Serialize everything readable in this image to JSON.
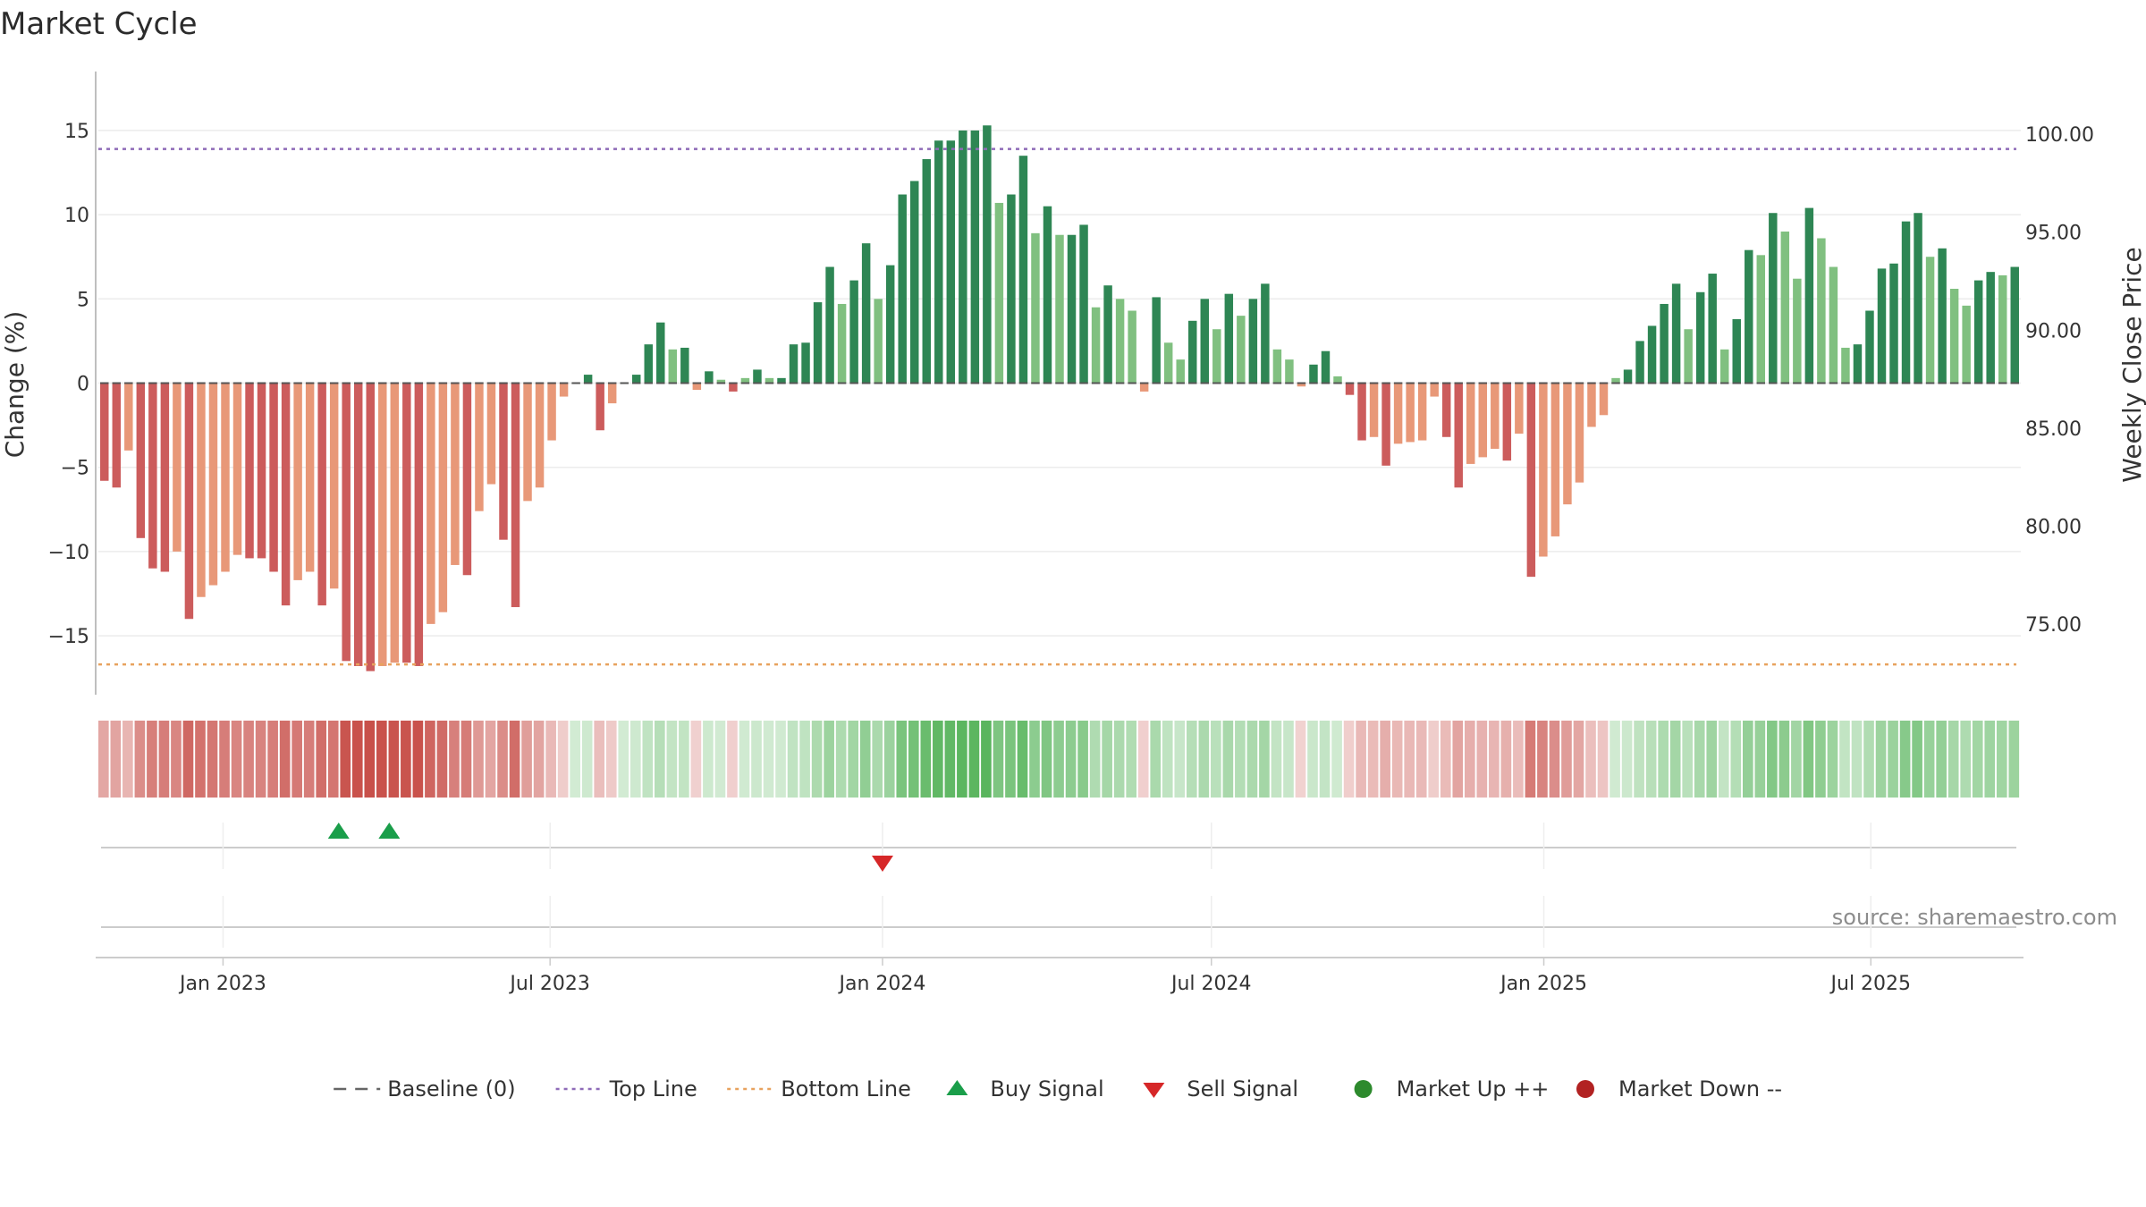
{
  "chart_data": {
    "type": "bar",
    "title": "Market Cycle",
    "ylabel": "Change (%)",
    "y2label": "Weekly Close Price",
    "ylim": [
      -18.5,
      18.5
    ],
    "y2lim": [
      71.4,
      103.2
    ],
    "yticks": [
      15,
      10,
      5,
      0,
      -5,
      -10,
      -15
    ],
    "ytick_labels": [
      "15",
      "10",
      "5",
      "0",
      "−5",
      "−10",
      "−15"
    ],
    "y2ticks": [
      100,
      95,
      90,
      85,
      80,
      75
    ],
    "y2tick_labels": [
      "100.00",
      "95.00",
      "90.00",
      "85.00",
      "80.00",
      "75.00"
    ],
    "x_start": "2022-10-24",
    "x_end": "2025-09-22",
    "bar_interval_days": 7,
    "xticks": [
      "2023-01-01",
      "2023-07-01",
      "2024-01-01",
      "2024-07-01",
      "2025-01-01",
      "2025-07-01"
    ],
    "xtick_labels": [
      "Jan 2023",
      "Jul 2023",
      "Jan 2024",
      "Jul 2024",
      "Jan 2025",
      "Jul 2025"
    ],
    "top_line": 13.9,
    "bottom_line": -16.7,
    "baseline": 0,
    "values": [
      -5.8,
      -6.2,
      -4.0,
      -9.2,
      -11.0,
      -11.2,
      -10.0,
      -14.0,
      -12.7,
      -12.0,
      -11.2,
      -10.2,
      -10.4,
      -10.4,
      -11.2,
      -13.2,
      -11.7,
      -11.2,
      -13.2,
      -12.2,
      -16.5,
      -16.8,
      -17.1,
      -16.8,
      -16.6,
      -16.6,
      -16.8,
      -14.3,
      -13.6,
      -10.8,
      -11.4,
      -7.6,
      -6.0,
      -9.3,
      -13.3,
      -7.0,
      -6.2,
      -3.4,
      -0.8,
      0.0,
      0.5,
      -2.8,
      -1.2,
      0.0,
      0.5,
      2.3,
      3.6,
      2.0,
      2.1,
      -0.4,
      0.7,
      0.2,
      -0.5,
      0.3,
      0.8,
      0.3,
      0.3,
      2.3,
      2.4,
      4.8,
      6.9,
      4.7,
      6.1,
      8.3,
      5.0,
      7.0,
      11.2,
      12.0,
      13.3,
      14.4,
      14.4,
      15.0,
      15.0,
      15.3,
      10.7,
      11.2,
      13.5,
      8.9,
      10.5,
      8.8,
      8.8,
      9.4,
      4.5,
      5.8,
      5.0,
      4.3,
      -0.5,
      5.1,
      2.4,
      1.4,
      3.7,
      5.0,
      3.2,
      5.3,
      4.0,
      5.0,
      5.9,
      2.0,
      1.4,
      -0.2,
      1.1,
      1.9,
      0.4,
      -0.7,
      -3.4,
      -3.2,
      -4.9,
      -3.6,
      -3.5,
      -3.4,
      -0.8,
      -3.2,
      -6.2,
      -4.8,
      -4.4,
      -3.9,
      -4.6,
      -3.0,
      -11.5,
      -10.3,
      -9.1,
      -7.2,
      -5.9,
      -2.6,
      -1.9,
      0.3,
      0.8,
      2.5,
      3.4,
      4.7,
      5.9,
      3.2,
      5.4,
      6.5,
      2.0,
      3.8,
      7.9,
      7.6,
      10.1,
      9.0,
      6.2,
      10.4,
      8.6,
      6.9,
      2.1,
      2.3,
      4.3,
      6.8,
      7.1,
      9.6,
      10.1,
      7.5,
      8.0,
      5.6,
      4.6,
      6.1,
      6.6,
      6.4,
      6.9
    ],
    "buy_signals": [
      "2023-03-06",
      "2023-04-03"
    ],
    "sell_signals": [
      "2024-01-01"
    ],
    "legend": {
      "placement": "bottom",
      "items": [
        {
          "label": "Baseline (0)",
          "symbol": "dashed-line",
          "color": "#666666"
        },
        {
          "label": "Top Line",
          "symbol": "dotted-line",
          "color": "#8e6bb8"
        },
        {
          "label": "Bottom Line",
          "symbol": "dotted-line",
          "color": "#e8a25e"
        },
        {
          "label": "Buy Signal",
          "symbol": "triangle-up",
          "color": "#1a9e4a"
        },
        {
          "label": "Sell Signal",
          "symbol": "triangle-down",
          "color": "#d62728"
        },
        {
          "label": "Market Up ++",
          "symbol": "circle",
          "color": "#2d8a2d"
        },
        {
          "label": "Market Down --",
          "symbol": "circle",
          "color": "#b22222"
        }
      ]
    },
    "colors": {
      "up_strong": "#2e8654",
      "up_weak": "#80c080",
      "down_strong": "#cc5c5c",
      "down_weak": "#e89878",
      "top_line": "#8e6bb8",
      "bottom_line": "#e8a25e",
      "heat_pos": "#4caf50",
      "heat_neg": "#c8504a"
    },
    "grid": true,
    "source": "source: sharemaestro.com"
  }
}
